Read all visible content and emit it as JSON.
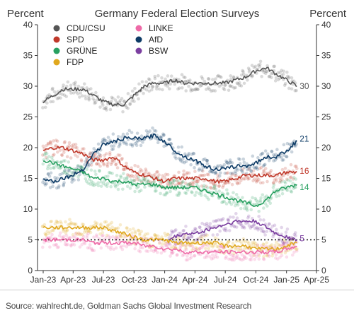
{
  "chart_data": {
    "type": "line",
    "title": "Germany Federal Election Surveys",
    "ylabel_left": "Percent",
    "ylabel_right": "Percent",
    "ylim": [
      0,
      40
    ],
    "y_ticks": [
      0,
      5,
      10,
      15,
      20,
      25,
      30,
      35,
      40
    ],
    "x_ticks": [
      "Jan-23",
      "Apr-23",
      "Jul-23",
      "Oct-23",
      "Jan-24",
      "Apr-24",
      "Jul-24",
      "Oct-24",
      "Jan-25",
      "Apr-25"
    ],
    "xlim": [
      "2022-12-15",
      "2025-04-01"
    ],
    "reference_line": {
      "y": 5,
      "style": "dotted"
    },
    "legend_placement": "top-left",
    "series": [
      {
        "name": "CDU/CSU",
        "color": "#555555",
        "end_label": "30",
        "points": [
          [
            "2023-01-01",
            27.5
          ],
          [
            "2023-02-01",
            28.5
          ],
          [
            "2023-03-01",
            29.5
          ],
          [
            "2023-04-01",
            29.5
          ],
          [
            "2023-05-01",
            29.5
          ],
          [
            "2023-06-01",
            28.5
          ],
          [
            "2023-07-01",
            27.5
          ],
          [
            "2023-08-01",
            27
          ],
          [
            "2023-09-01",
            27
          ],
          [
            "2023-10-01",
            28.5
          ],
          [
            "2023-11-01",
            30
          ],
          [
            "2023-12-01",
            30.5
          ],
          [
            "2024-01-01",
            30.5
          ],
          [
            "2024-02-01",
            31
          ],
          [
            "2024-03-01",
            30.5
          ],
          [
            "2024-04-01",
            30.5
          ],
          [
            "2024-05-01",
            30.5
          ],
          [
            "2024-06-01",
            30.5
          ],
          [
            "2024-07-01",
            30.5
          ],
          [
            "2024-08-01",
            31
          ],
          [
            "2024-09-01",
            31.5
          ],
          [
            "2024-10-01",
            32.5
          ],
          [
            "2024-11-01",
            33
          ],
          [
            "2024-12-01",
            32
          ],
          [
            "2025-01-01",
            31
          ],
          [
            "2025-02-01",
            30
          ]
        ]
      },
      {
        "name": "SPD",
        "color": "#c0392b",
        "end_label": "16",
        "points": [
          [
            "2023-01-01",
            19.5
          ],
          [
            "2023-02-01",
            20
          ],
          [
            "2023-03-01",
            20
          ],
          [
            "2023-04-01",
            19.5
          ],
          [
            "2023-05-01",
            19
          ],
          [
            "2023-06-01",
            18
          ],
          [
            "2023-07-01",
            18
          ],
          [
            "2023-08-01",
            18.5
          ],
          [
            "2023-09-01",
            17
          ],
          [
            "2023-10-01",
            16
          ],
          [
            "2023-11-01",
            15.5
          ],
          [
            "2023-12-01",
            15
          ],
          [
            "2024-01-01",
            14.5
          ],
          [
            "2024-02-01",
            15
          ],
          [
            "2024-03-01",
            15
          ],
          [
            "2024-04-01",
            15
          ],
          [
            "2024-05-01",
            15
          ],
          [
            "2024-06-01",
            14.5
          ],
          [
            "2024-07-01",
            14.5
          ],
          [
            "2024-08-01",
            15
          ],
          [
            "2024-09-01",
            15.5
          ],
          [
            "2024-10-01",
            15.5
          ],
          [
            "2024-11-01",
            15.5
          ],
          [
            "2024-12-01",
            15.5
          ],
          [
            "2025-01-01",
            16
          ],
          [
            "2025-02-01",
            16
          ]
        ]
      },
      {
        "name": "GRÜNE",
        "color": "#27a060",
        "end_label": "14",
        "points": [
          [
            "2023-01-01",
            18
          ],
          [
            "2023-02-01",
            17.5
          ],
          [
            "2023-03-01",
            17
          ],
          [
            "2023-04-01",
            16.5
          ],
          [
            "2023-05-01",
            16
          ],
          [
            "2023-06-01",
            15
          ],
          [
            "2023-07-01",
            15
          ],
          [
            "2023-08-01",
            14.5
          ],
          [
            "2023-09-01",
            14.5
          ],
          [
            "2023-10-01",
            14
          ],
          [
            "2023-11-01",
            14
          ],
          [
            "2023-12-01",
            14
          ],
          [
            "2024-01-01",
            13.5
          ],
          [
            "2024-02-01",
            13.5
          ],
          [
            "2024-03-01",
            13.5
          ],
          [
            "2024-04-01",
            13.5
          ],
          [
            "2024-05-01",
            13
          ],
          [
            "2024-06-01",
            12.5
          ],
          [
            "2024-07-01",
            12
          ],
          [
            "2024-08-01",
            11.5
          ],
          [
            "2024-09-01",
            11
          ],
          [
            "2024-10-01",
            10.5
          ],
          [
            "2024-11-01",
            11.5
          ],
          [
            "2024-12-01",
            13
          ],
          [
            "2025-01-01",
            13.5
          ],
          [
            "2025-02-01",
            14
          ]
        ]
      },
      {
        "name": "FDP",
        "color": "#e0a81e",
        "end_label": "",
        "points": [
          [
            "2023-01-01",
            7
          ],
          [
            "2023-02-01",
            7
          ],
          [
            "2023-03-01",
            7
          ],
          [
            "2023-04-01",
            7
          ],
          [
            "2023-05-01",
            7
          ],
          [
            "2023-06-01",
            7
          ],
          [
            "2023-07-01",
            7
          ],
          [
            "2023-08-01",
            6.5
          ],
          [
            "2023-09-01",
            6
          ],
          [
            "2023-10-01",
            5.5
          ],
          [
            "2023-11-01",
            5
          ],
          [
            "2023-12-01",
            5
          ],
          [
            "2024-01-01",
            5
          ],
          [
            "2024-02-01",
            4.5
          ],
          [
            "2024-03-01",
            4.5
          ],
          [
            "2024-04-01",
            4.5
          ],
          [
            "2024-05-01",
            4.5
          ],
          [
            "2024-06-01",
            4.5
          ],
          [
            "2024-07-01",
            4
          ],
          [
            "2024-08-01",
            4
          ],
          [
            "2024-09-01",
            4
          ],
          [
            "2024-10-01",
            3.5
          ],
          [
            "2024-11-01",
            3.5
          ],
          [
            "2024-12-01",
            3.5
          ],
          [
            "2025-01-01",
            4
          ],
          [
            "2025-02-01",
            4.5
          ]
        ]
      },
      {
        "name": "LINKE",
        "color": "#ee6aa7",
        "end_label": "",
        "points": [
          [
            "2023-01-01",
            5
          ],
          [
            "2023-02-01",
            5
          ],
          [
            "2023-03-01",
            5
          ],
          [
            "2023-04-01",
            5
          ],
          [
            "2023-05-01",
            5
          ],
          [
            "2023-06-01",
            4.5
          ],
          [
            "2023-07-01",
            4.5
          ],
          [
            "2023-08-01",
            4.5
          ],
          [
            "2023-09-01",
            4.5
          ],
          [
            "2023-10-01",
            4.5
          ],
          [
            "2023-11-01",
            4
          ],
          [
            "2023-12-01",
            4
          ],
          [
            "2024-01-01",
            3.5
          ],
          [
            "2024-02-01",
            3.5
          ],
          [
            "2024-03-01",
            3
          ],
          [
            "2024-04-01",
            3
          ],
          [
            "2024-05-01",
            3
          ],
          [
            "2024-06-01",
            3
          ],
          [
            "2024-07-01",
            3
          ],
          [
            "2024-08-01",
            3
          ],
          [
            "2024-09-01",
            3
          ],
          [
            "2024-10-01",
            3
          ],
          [
            "2024-11-01",
            3
          ],
          [
            "2024-12-01",
            3
          ],
          [
            "2025-01-01",
            3.5
          ],
          [
            "2025-02-01",
            4
          ]
        ]
      },
      {
        "name": "AfD",
        "color": "#0d3b66",
        "end_label": "21",
        "points": [
          [
            "2023-01-01",
            15
          ],
          [
            "2023-02-01",
            14.5
          ],
          [
            "2023-03-01",
            15
          ],
          [
            "2023-04-01",
            15.5
          ],
          [
            "2023-05-01",
            16.5
          ],
          [
            "2023-06-01",
            19
          ],
          [
            "2023-07-01",
            20.5
          ],
          [
            "2023-08-01",
            21
          ],
          [
            "2023-09-01",
            21.5
          ],
          [
            "2023-10-01",
            21.5
          ],
          [
            "2023-11-01",
            21.5
          ],
          [
            "2023-12-01",
            22
          ],
          [
            "2024-01-01",
            21
          ],
          [
            "2024-02-01",
            19.5
          ],
          [
            "2024-03-01",
            18.5
          ],
          [
            "2024-04-01",
            18
          ],
          [
            "2024-05-01",
            17
          ],
          [
            "2024-06-01",
            16.5
          ],
          [
            "2024-07-01",
            16.5
          ],
          [
            "2024-08-01",
            17
          ],
          [
            "2024-09-01",
            17
          ],
          [
            "2024-10-01",
            17.5
          ],
          [
            "2024-11-01",
            18.5
          ],
          [
            "2024-12-01",
            18.5
          ],
          [
            "2025-01-01",
            19.5
          ],
          [
            "2025-02-01",
            21
          ]
        ]
      },
      {
        "name": "BSW",
        "color": "#7b3fa0",
        "end_label": "5",
        "points": [
          [
            "2024-01-15",
            5
          ],
          [
            "2024-02-01",
            5.5
          ],
          [
            "2024-03-01",
            6
          ],
          [
            "2024-04-01",
            6
          ],
          [
            "2024-05-01",
            6.5
          ],
          [
            "2024-06-01",
            7
          ],
          [
            "2024-07-01",
            7.5
          ],
          [
            "2024-08-01",
            8
          ],
          [
            "2024-09-01",
            8
          ],
          [
            "2024-10-01",
            8
          ],
          [
            "2024-11-01",
            7
          ],
          [
            "2024-12-01",
            6
          ],
          [
            "2025-01-01",
            5.5
          ],
          [
            "2025-02-01",
            5
          ]
        ]
      }
    ]
  },
  "source": "Source: wahlrecht.de, Goldman Sachs Global Investment Research"
}
